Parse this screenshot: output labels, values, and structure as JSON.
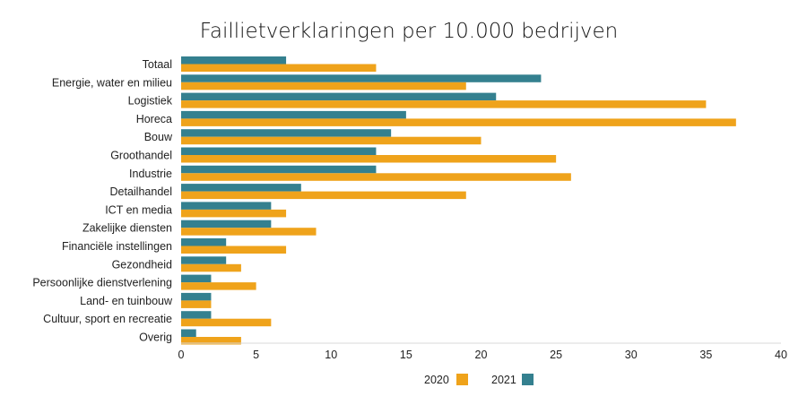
{
  "chart_data": {
    "type": "bar",
    "orientation": "horizontal",
    "title": "Faillietverklaringen per 10.000 bedrijven",
    "xlabel": "",
    "ylabel": "",
    "categories": [
      "Totaal",
      "Energie, water en milieu",
      "Logistiek",
      "Horeca",
      "Bouw",
      "Groothandel",
      "Industrie",
      "Detailhandel",
      "ICT en media",
      "Zakelijke diensten",
      "Financiële instellingen",
      "Gezondheid",
      "Persoonlijke dienstverlening",
      "Land- en tuinbouw",
      "Cultuur, sport en recreatie",
      "Overig"
    ],
    "series": [
      {
        "name": "2021",
        "color": "#34808f",
        "values": [
          7,
          24,
          21,
          15,
          14,
          13,
          13,
          8,
          6,
          6,
          3,
          3,
          2,
          2,
          2,
          1
        ]
      },
      {
        "name": "2020",
        "color": "#efa31b",
        "values": [
          13,
          19,
          35,
          37,
          20,
          25,
          26,
          19,
          7,
          9,
          7,
          4,
          5,
          2,
          6,
          4
        ]
      }
    ],
    "xlim": [
      0,
      40
    ],
    "xticks": [
      "0",
      "5",
      "10",
      "15",
      "20",
      "25",
      "30",
      "35",
      "40"
    ],
    "grid": false,
    "legend": {
      "position": "bottom-center",
      "entries": [
        {
          "label": "2020",
          "color": "#efa31b"
        },
        {
          "label": "2021",
          "color": "#34808f"
        }
      ]
    }
  }
}
